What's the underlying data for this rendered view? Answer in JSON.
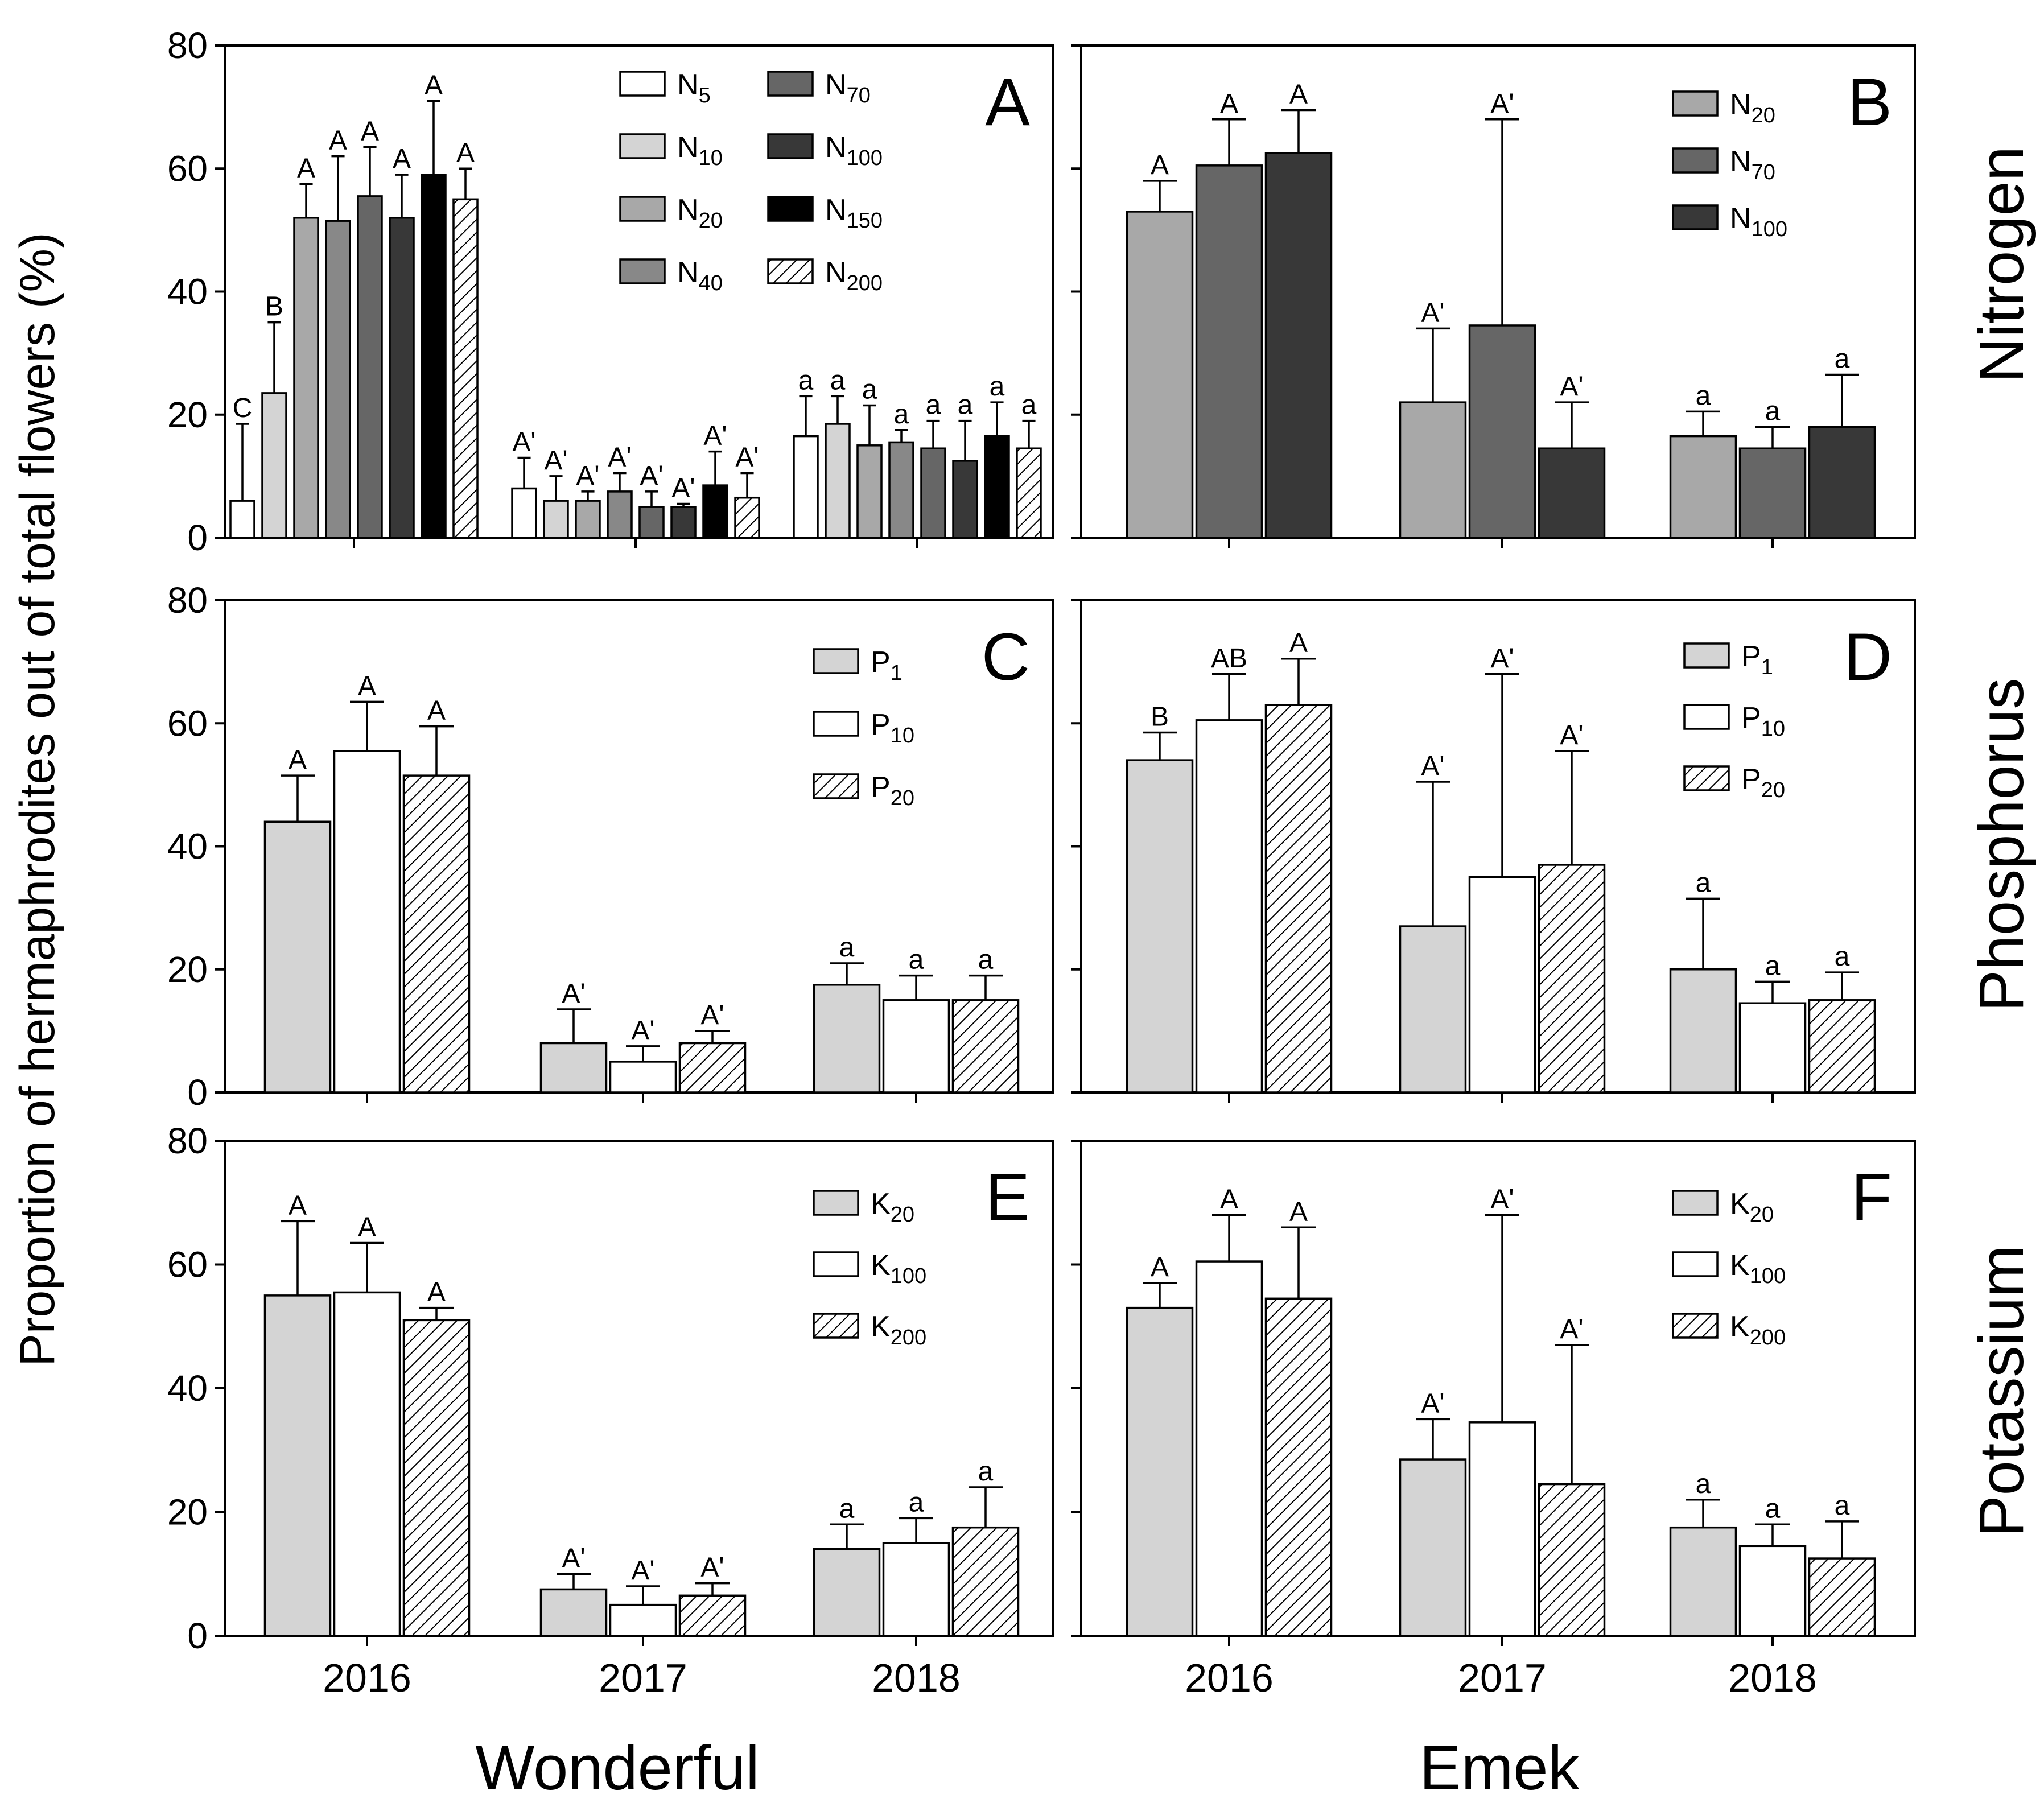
{
  "figure": {
    "ylabel": "Proportion of hermaphrodites out of total flowers (%)",
    "yticks": [
      "0",
      "20",
      "40",
      "60",
      "80"
    ],
    "cultivars": [
      "Wonderful",
      "Emek"
    ],
    "nutrients": [
      "Nitrogen",
      "Phosphorus",
      "Potassium"
    ]
  },
  "chart_data": [
    {
      "panel": "A",
      "type": "bar",
      "categories": [
        "2016",
        "2017",
        "2018"
      ],
      "ylim": [
        0,
        80
      ],
      "yticks": [
        0,
        20,
        40,
        60,
        80
      ],
      "legend_position": "top-right",
      "series": [
        {
          "name": "N5",
          "base": "N",
          "sub": "5",
          "pattern": "white",
          "values": [
            6,
            8,
            16.5
          ],
          "errors": [
            12.5,
            5,
            6.5
          ],
          "labels": [
            "C",
            "A'",
            "a"
          ]
        },
        {
          "name": "N10",
          "base": "N",
          "sub": "10",
          "pattern": "lightgray",
          "values": [
            23.5,
            6,
            18.5
          ],
          "errors": [
            11.5,
            4,
            4.5
          ],
          "labels": [
            "B",
            "A'",
            "a"
          ]
        },
        {
          "name": "N20",
          "base": "N",
          "sub": "20",
          "pattern": "gray",
          "values": [
            52,
            6,
            15
          ],
          "errors": [
            5.5,
            1.5,
            6.5
          ],
          "labels": [
            "A",
            "A'",
            "a"
          ]
        },
        {
          "name": "N40",
          "base": "N",
          "sub": "40",
          "pattern": "midgray",
          "values": [
            51.5,
            7.5,
            15.5
          ],
          "errors": [
            10.5,
            3,
            2
          ],
          "labels": [
            "A",
            "A'",
            "a"
          ]
        },
        {
          "name": "N70",
          "base": "N",
          "sub": "70",
          "pattern": "darkgray",
          "values": [
            55.5,
            5,
            14.5
          ],
          "errors": [
            8,
            2.5,
            4.5
          ],
          "labels": [
            "A",
            "A'",
            "a"
          ]
        },
        {
          "name": "N100",
          "base": "N",
          "sub": "100",
          "pattern": "vdarkgray",
          "values": [
            52,
            5,
            12.5
          ],
          "errors": [
            7,
            0.5,
            6.5
          ],
          "labels": [
            "A",
            "A'",
            "a"
          ]
        },
        {
          "name": "N150",
          "base": "N",
          "sub": "150",
          "pattern": "black",
          "values": [
            59,
            8.5,
            16.5
          ],
          "errors": [
            12,
            5.5,
            5.5
          ],
          "labels": [
            "A",
            "A'",
            "a"
          ]
        },
        {
          "name": "N200",
          "base": "N",
          "sub": "200",
          "pattern": "hatch",
          "values": [
            55,
            6.5,
            14.5
          ],
          "errors": [
            5,
            4,
            4.5
          ],
          "labels": [
            "A",
            "A'",
            "a"
          ]
        }
      ]
    },
    {
      "panel": "B",
      "type": "bar",
      "categories": [
        "2016",
        "2017",
        "2018"
      ],
      "ylim": [
        0,
        80
      ],
      "yticks": [
        0,
        20,
        40,
        60,
        80
      ],
      "legend_position": "top-right",
      "series": [
        {
          "name": "N20",
          "base": "N",
          "sub": "20",
          "pattern": "gray",
          "values": [
            53,
            22,
            16.5
          ],
          "errors": [
            5,
            12,
            4
          ],
          "labels": [
            "A",
            "A'",
            "a"
          ]
        },
        {
          "name": "N70",
          "base": "N",
          "sub": "70",
          "pattern": "darkgray",
          "values": [
            60.5,
            34.5,
            14.5
          ],
          "errors": [
            7.5,
            33.5,
            3.5
          ],
          "labels": [
            "A",
            "A'",
            "a"
          ]
        },
        {
          "name": "N100",
          "base": "N",
          "sub": "100",
          "pattern": "vdarkgray",
          "values": [
            62.5,
            14.5,
            18
          ],
          "errors": [
            7,
            7.5,
            8.5
          ],
          "labels": [
            "A",
            "A'",
            "a"
          ]
        }
      ]
    },
    {
      "panel": "C",
      "type": "bar",
      "categories": [
        "2016",
        "2017",
        "2018"
      ],
      "ylim": [
        0,
        80
      ],
      "yticks": [
        0,
        20,
        40,
        60,
        80
      ],
      "legend_position": "top-right",
      "series": [
        {
          "name": "P1",
          "base": "P",
          "sub": "1",
          "pattern": "lightgray",
          "values": [
            44,
            8,
            17.5
          ],
          "errors": [
            7.5,
            5.5,
            3.5
          ],
          "labels": [
            "A",
            "A'",
            "a"
          ]
        },
        {
          "name": "P10",
          "base": "P",
          "sub": "10",
          "pattern": "white",
          "values": [
            55.5,
            5,
            15
          ],
          "errors": [
            8,
            2.5,
            4
          ],
          "labels": [
            "A",
            "A'",
            "a"
          ]
        },
        {
          "name": "P20",
          "base": "P",
          "sub": "20",
          "pattern": "hatch",
          "values": [
            51.5,
            8,
            15
          ],
          "errors": [
            8,
            2,
            4
          ],
          "labels": [
            "A",
            "A'",
            "a"
          ]
        }
      ]
    },
    {
      "panel": "D",
      "type": "bar",
      "categories": [
        "2016",
        "2017",
        "2018"
      ],
      "ylim": [
        0,
        80
      ],
      "yticks": [
        0,
        20,
        40,
        60,
        80
      ],
      "legend_position": "top-right",
      "series": [
        {
          "name": "P1",
          "base": "P",
          "sub": "1",
          "pattern": "lightgray",
          "values": [
            54,
            27,
            20
          ],
          "errors": [
            4.5,
            23.5,
            11.5
          ],
          "labels": [
            "B",
            "A'",
            "a"
          ]
        },
        {
          "name": "P10",
          "base": "P",
          "sub": "10",
          "pattern": "white",
          "values": [
            60.5,
            35,
            14.5
          ],
          "errors": [
            7.5,
            33,
            3.5
          ],
          "labels": [
            "AB",
            "A'",
            "a"
          ]
        },
        {
          "name": "P20",
          "base": "P",
          "sub": "20",
          "pattern": "hatch",
          "values": [
            63,
            37,
            15
          ],
          "errors": [
            7.5,
            18.5,
            4.5
          ],
          "labels": [
            "A",
            "A'",
            "a"
          ]
        }
      ]
    },
    {
      "panel": "E",
      "type": "bar",
      "categories": [
        "2016",
        "2017",
        "2018"
      ],
      "ylim": [
        0,
        80
      ],
      "yticks": [
        0,
        20,
        40,
        60,
        80
      ],
      "legend_position": "top-right",
      "series": [
        {
          "name": "K20",
          "base": "K",
          "sub": "20",
          "pattern": "lightgray",
          "values": [
            55,
            7.5,
            14
          ],
          "errors": [
            12,
            2.5,
            4
          ],
          "labels": [
            "A",
            "A'",
            "a"
          ]
        },
        {
          "name": "K100",
          "base": "K",
          "sub": "100",
          "pattern": "white",
          "values": [
            55.5,
            5,
            15
          ],
          "errors": [
            8,
            3,
            4
          ],
          "labels": [
            "A",
            "A'",
            "a"
          ]
        },
        {
          "name": "K200",
          "base": "K",
          "sub": "200",
          "pattern": "hatch",
          "values": [
            51,
            6.5,
            17.5
          ],
          "errors": [
            2,
            2,
            6.5
          ],
          "labels": [
            "A",
            "A'",
            "a"
          ]
        }
      ]
    },
    {
      "panel": "F",
      "type": "bar",
      "categories": [
        "2016",
        "2017",
        "2018"
      ],
      "ylim": [
        0,
        80
      ],
      "yticks": [
        0,
        20,
        40,
        60,
        80
      ],
      "legend_position": "top-right",
      "series": [
        {
          "name": "K20",
          "base": "K",
          "sub": "20",
          "pattern": "lightgray",
          "values": [
            53,
            28.5,
            17.5
          ],
          "errors": [
            4,
            6.5,
            4.5
          ],
          "labels": [
            "A",
            "A'",
            "a"
          ]
        },
        {
          "name": "K100",
          "base": "K",
          "sub": "100",
          "pattern": "white",
          "values": [
            60.5,
            34.5,
            14.5
          ],
          "errors": [
            7.5,
            33.5,
            3.5
          ],
          "labels": [
            "A",
            "A'",
            "a"
          ]
        },
        {
          "name": "K200",
          "base": "K",
          "sub": "200",
          "pattern": "hatch",
          "values": [
            54.5,
            24.5,
            12.5
          ],
          "errors": [
            11.5,
            22.5,
            6
          ],
          "labels": [
            "A",
            "A'",
            "a"
          ]
        }
      ]
    }
  ],
  "colors": {
    "white": "#ffffff",
    "lightgray": "#d4d4d4",
    "gray": "#a8a8a8",
    "midgray": "#888888",
    "darkgray": "#666666",
    "vdarkgray": "#383838",
    "black": "#000000"
  }
}
